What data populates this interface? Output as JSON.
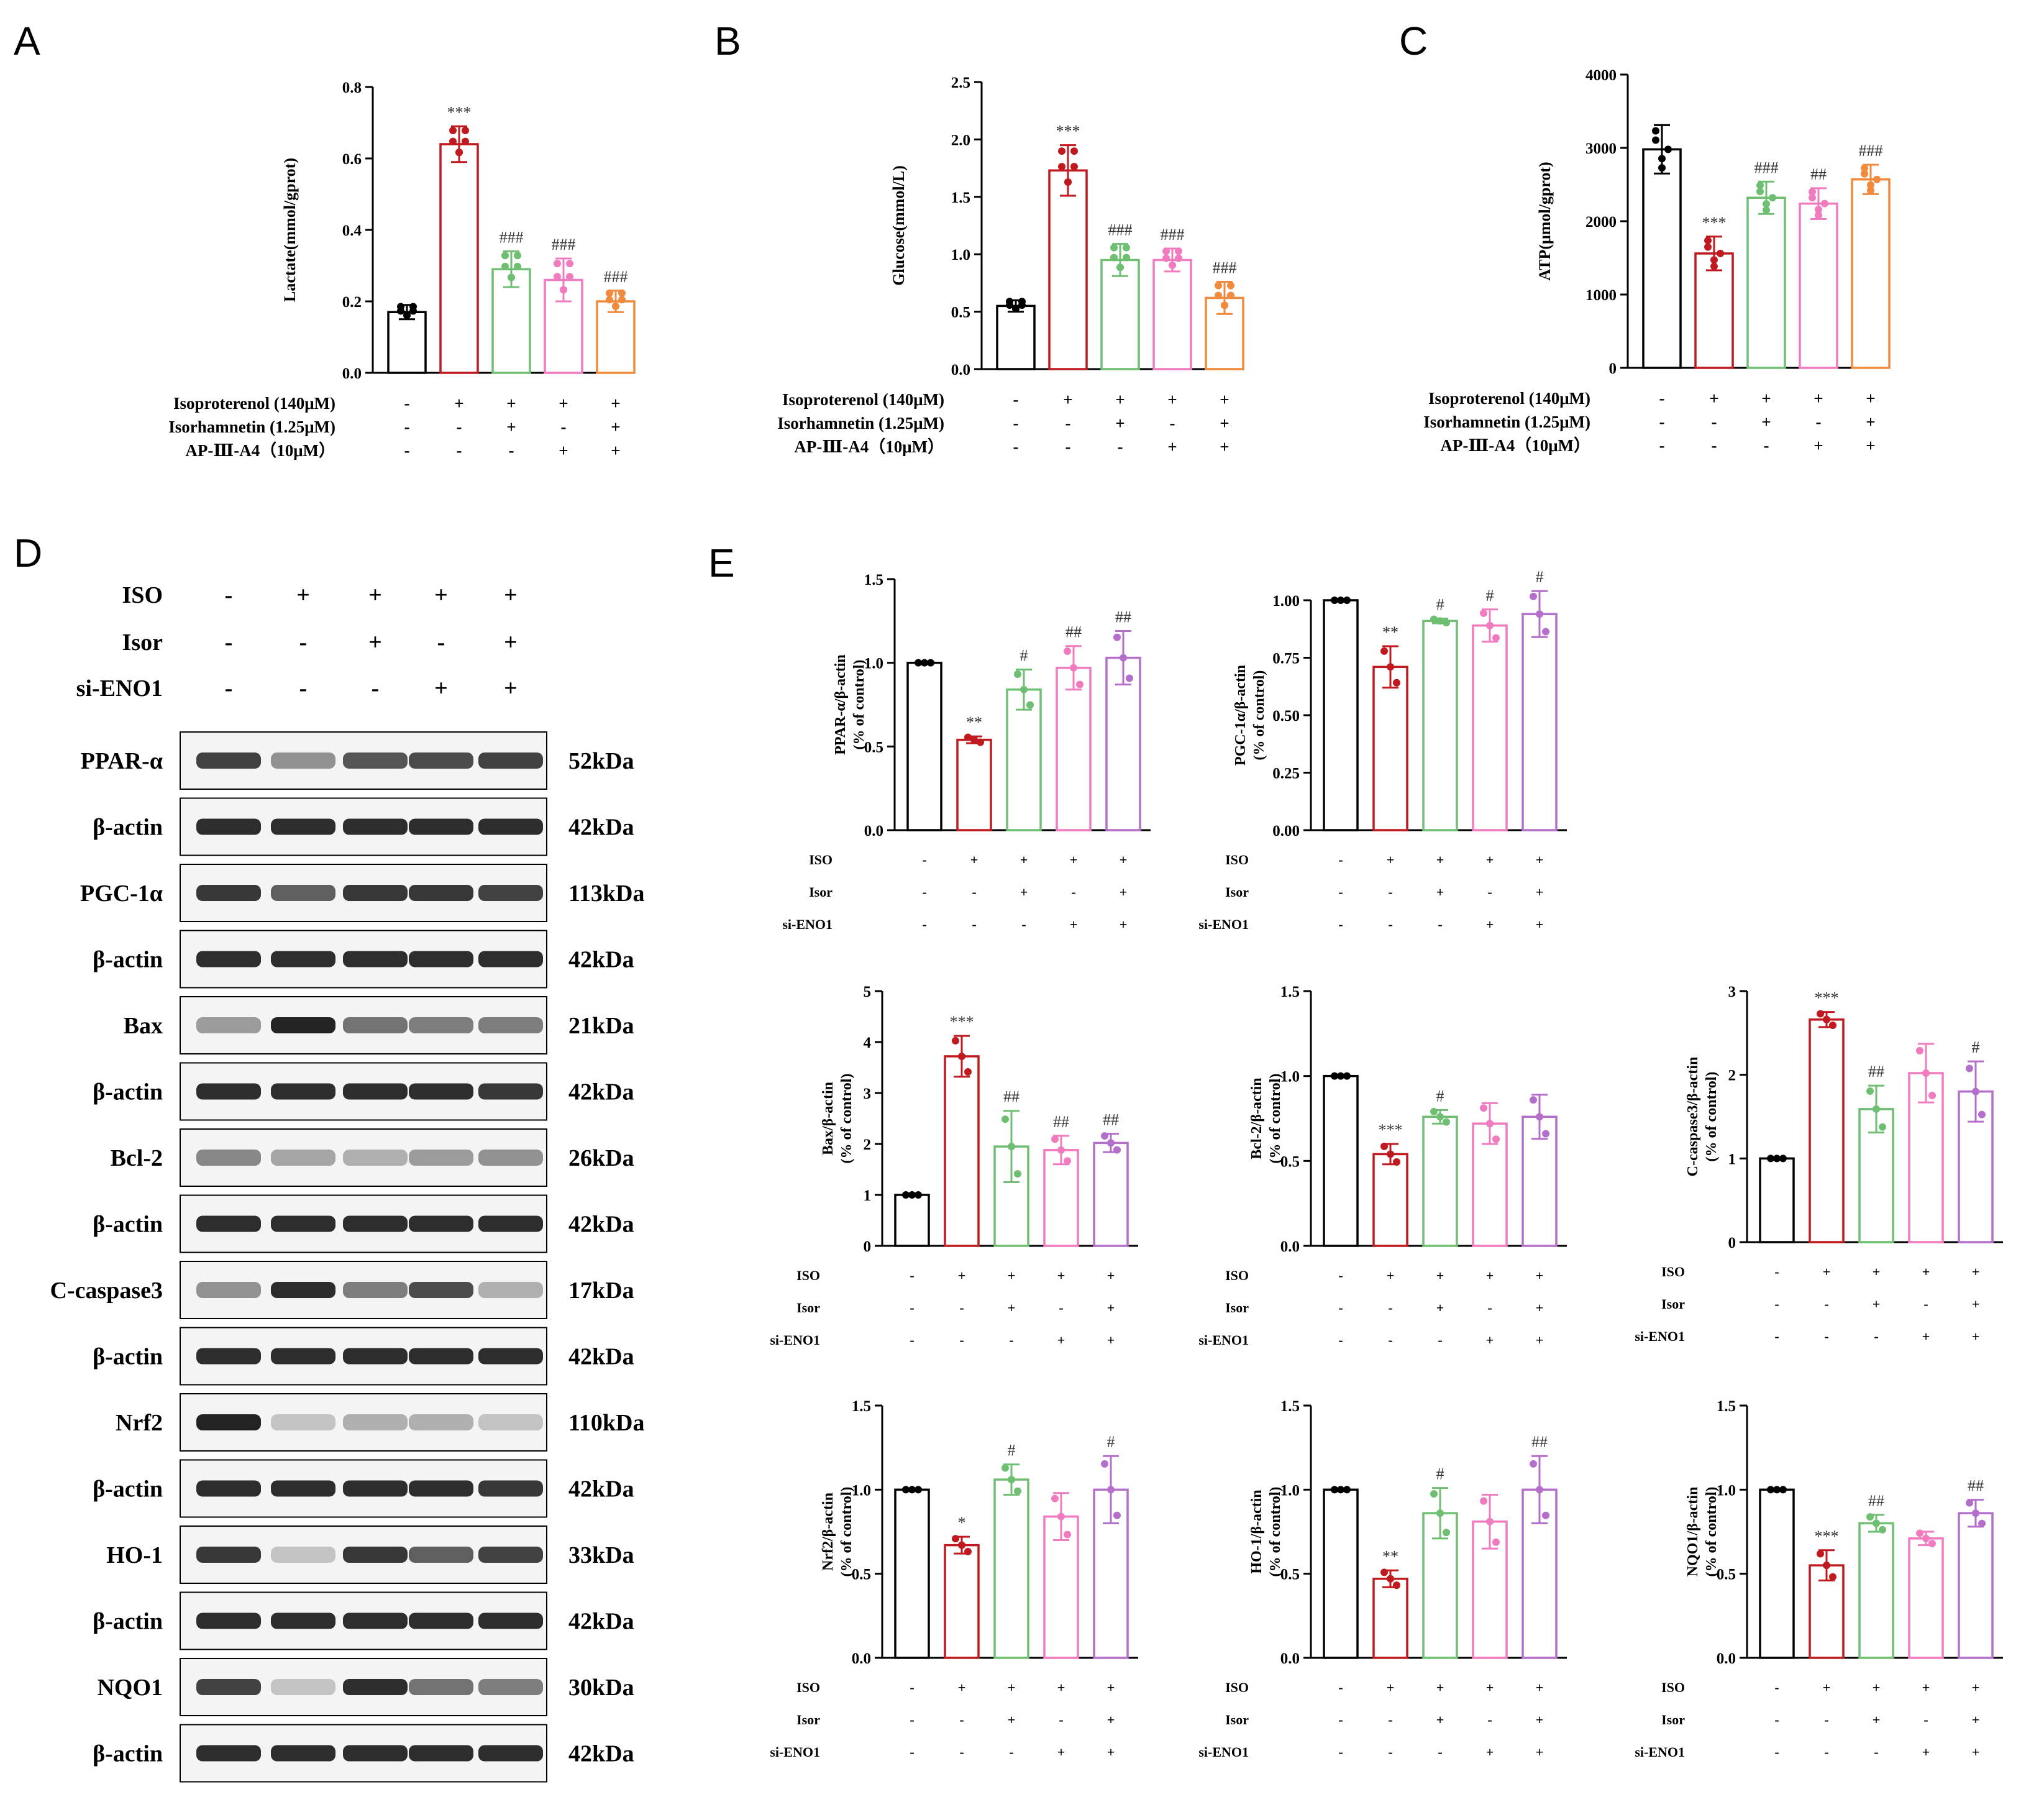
{
  "panel_letters": [
    "A",
    "B",
    "C",
    "D",
    "E"
  ],
  "colors": {
    "control": "#000000",
    "iso": "#c0191f",
    "isor": "#6fbf73",
    "ap_or_si": "#f07bbf",
    "combo_abc": "#f08a3c",
    "combo_e": "#b36fc9"
  },
  "blot": {
    "headers": [
      {
        "label": "ISO",
        "signs": [
          "-",
          "+",
          "+",
          "+",
          "+"
        ]
      },
      {
        "label": "Isor",
        "signs": [
          "-",
          "-",
          "+",
          "-",
          "+"
        ]
      },
      {
        "label": "si-ENO1",
        "signs": [
          "-",
          "-",
          "-",
          "+",
          "+"
        ]
      }
    ],
    "rows": [
      {
        "protein": "PPAR-α",
        "kda": "52kDa",
        "intensity": [
          0.85,
          0.45,
          0.75,
          0.8,
          0.85
        ]
      },
      {
        "protein": "β-actin",
        "kda": "42kDa",
        "intensity": [
          0.95,
          0.95,
          0.95,
          0.95,
          0.95
        ]
      },
      {
        "protein": "PGC-1α",
        "kda": "113kDa",
        "intensity": [
          0.9,
          0.7,
          0.9,
          0.9,
          0.85
        ]
      },
      {
        "protein": "β-actin",
        "kda": "42kDa",
        "intensity": [
          0.95,
          0.95,
          0.95,
          0.95,
          0.95
        ]
      },
      {
        "protein": "Bax",
        "kda": "21kDa",
        "intensity": [
          0.4,
          1.0,
          0.6,
          0.55,
          0.55
        ]
      },
      {
        "protein": "β-actin",
        "kda": "42kDa",
        "intensity": [
          0.95,
          0.95,
          0.95,
          0.95,
          0.9
        ]
      },
      {
        "protein": "Bcl-2",
        "kda": "26kDa",
        "intensity": [
          0.5,
          0.35,
          0.3,
          0.4,
          0.45
        ]
      },
      {
        "protein": "β-actin",
        "kda": "42kDa",
        "intensity": [
          0.95,
          0.95,
          0.95,
          0.95,
          0.95
        ]
      },
      {
        "protein": "C-caspase3",
        "kda": "17kDa",
        "intensity": [
          0.45,
          0.95,
          0.55,
          0.8,
          0.3
        ]
      },
      {
        "protein": "β-actin",
        "kda": "42kDa",
        "intensity": [
          0.95,
          0.95,
          0.95,
          0.95,
          0.95
        ]
      },
      {
        "protein": "Nrf2",
        "kda": "110kDa",
        "intensity": [
          1.0,
          0.2,
          0.3,
          0.3,
          0.2
        ]
      },
      {
        "protein": "β-actin",
        "kda": "42kDa",
        "intensity": [
          0.95,
          0.95,
          0.95,
          0.95,
          0.9
        ]
      },
      {
        "protein": "HO-1",
        "kda": "33kDa",
        "intensity": [
          0.9,
          0.2,
          0.9,
          0.7,
          0.85
        ]
      },
      {
        "protein": "β-actin",
        "kda": "42kDa",
        "intensity": [
          0.95,
          0.95,
          0.95,
          0.95,
          0.95
        ]
      },
      {
        "protein": "NQO1",
        "kda": "30kDa",
        "intensity": [
          0.85,
          0.2,
          0.95,
          0.6,
          0.55
        ]
      },
      {
        "protein": "β-actin",
        "kda": "42kDa",
        "intensity": [
          0.95,
          0.95,
          0.95,
          0.95,
          0.95
        ]
      }
    ]
  },
  "chart_data": [
    {
      "type": "bar",
      "panel": "A",
      "ylabel": "Lactate(mmol/gprot)",
      "ylim": [
        0,
        0.8
      ],
      "yticks": [
        "0.0",
        "0.2",
        "0.4",
        "0.6",
        "0.8"
      ],
      "values": [
        0.17,
        0.64,
        0.29,
        0.26,
        0.2
      ],
      "errors": [
        0.02,
        0.05,
        0.05,
        0.06,
        0.03
      ],
      "significance": [
        "",
        "***",
        "###",
        "###",
        "###"
      ],
      "conditions": [
        {
          "label": "Isoproterenol (140μM)",
          "signs": [
            "-",
            "+",
            "+",
            "+",
            "+"
          ]
        },
        {
          "label": "Isorhamnetin (1.25μM)",
          "signs": [
            "-",
            "-",
            "+",
            "-",
            "+"
          ]
        },
        {
          "label": "AP-Ⅲ-A4（10μM）",
          "signs": [
            "-",
            "-",
            "-",
            "+",
            "+"
          ]
        }
      ]
    },
    {
      "type": "bar",
      "panel": "B",
      "ylabel": "Glucose(mmol/L)",
      "ylim": [
        0,
        2.5
      ],
      "yticks": [
        "0.0",
        "0.5",
        "1.0",
        "1.5",
        "2.0",
        "2.5"
      ],
      "values": [
        0.55,
        1.73,
        0.95,
        0.95,
        0.62
      ],
      "errors": [
        0.05,
        0.22,
        0.14,
        0.1,
        0.14
      ],
      "significance": [
        "",
        "***",
        "###",
        "###",
        "###"
      ],
      "conditions": [
        {
          "label": "Isoproterenol (140μM)",
          "signs": [
            "-",
            "+",
            "+",
            "+",
            "+"
          ]
        },
        {
          "label": "Isorhamnetin (1.25μM)",
          "signs": [
            "-",
            "-",
            "+",
            "-",
            "+"
          ]
        },
        {
          "label": "AP-Ⅲ-A4（10μM）",
          "signs": [
            "-",
            "-",
            "-",
            "+",
            "+"
          ]
        }
      ]
    },
    {
      "type": "bar",
      "panel": "C",
      "ylabel": "ATP(μmol/gprot)",
      "ylim": [
        0,
        4000
      ],
      "yticks": [
        "0",
        "1000",
        "2000",
        "3000",
        "4000"
      ],
      "values": [
        2980,
        1560,
        2320,
        2240,
        2570
      ],
      "errors": [
        330,
        230,
        220,
        210,
        200
      ],
      "significance": [
        "",
        "***",
        "###",
        "##",
        "###"
      ],
      "conditions": [
        {
          "label": "Isoproterenol (140μM)",
          "signs": [
            "-",
            "+",
            "+",
            "+",
            "+"
          ]
        },
        {
          "label": "Isorhamnetin (1.25μM)",
          "signs": [
            "-",
            "-",
            "+",
            "-",
            "+"
          ]
        },
        {
          "label": "AP-Ⅲ-A4（10μM）",
          "signs": [
            "-",
            "-",
            "-",
            "+",
            "+"
          ]
        }
      ]
    },
    {
      "type": "bar",
      "panel": "E",
      "ylabel_top": "PPAR-α/β-actin",
      "ylabel_bottom": "(% of control)",
      "ylim": [
        0,
        1.5
      ],
      "yticks": [
        "0.0",
        "0.5",
        "1.0",
        "1.5"
      ],
      "values": [
        1.0,
        0.54,
        0.84,
        0.97,
        1.03
      ],
      "errors": [
        0,
        0.02,
        0.12,
        0.13,
        0.16
      ],
      "significance": [
        "",
        "**",
        "#",
        "##",
        "##"
      ],
      "conditions": [
        {
          "label": "ISO",
          "signs": [
            "-",
            "+",
            "+",
            "+",
            "+"
          ]
        },
        {
          "label": "Isor",
          "signs": [
            "-",
            "-",
            "+",
            "-",
            "+"
          ]
        },
        {
          "label": "si-ENO1",
          "signs": [
            "-",
            "-",
            "-",
            "+",
            "+"
          ]
        }
      ]
    },
    {
      "type": "bar",
      "panel": "E",
      "ylabel_top": "PGC-1α/β-actin",
      "ylabel_bottom": "(% of control)",
      "ylim": [
        0,
        1.0
      ],
      "yticks": [
        "0.00",
        "0.25",
        "0.50",
        "0.75",
        "1.00"
      ],
      "values": [
        1.0,
        0.71,
        0.91,
        0.89,
        0.94
      ],
      "errors": [
        0,
        0.09,
        0.01,
        0.07,
        0.1
      ],
      "significance": [
        "",
        "**",
        "#",
        "#",
        "#"
      ],
      "conditions": [
        {
          "label": "ISO",
          "signs": [
            "-",
            "+",
            "+",
            "+",
            "+"
          ]
        },
        {
          "label": "Isor",
          "signs": [
            "-",
            "-",
            "+",
            "-",
            "+"
          ]
        },
        {
          "label": "si-ENO1",
          "signs": [
            "-",
            "-",
            "-",
            "+",
            "+"
          ]
        }
      ]
    },
    {
      "type": "bar",
      "panel": "E",
      "ylabel_top": "Bax/β-actin",
      "ylabel_bottom": "(% of control)",
      "ylim": [
        0,
        5
      ],
      "yticks": [
        "0",
        "1",
        "2",
        "3",
        "4",
        "5"
      ],
      "values": [
        1.0,
        3.72,
        1.95,
        1.88,
        2.02
      ],
      "errors": [
        0,
        0.4,
        0.7,
        0.28,
        0.18
      ],
      "significance": [
        "",
        "***",
        "##",
        "##",
        "##"
      ],
      "conditions": [
        {
          "label": "ISO",
          "signs": [
            "-",
            "+",
            "+",
            "+",
            "+"
          ]
        },
        {
          "label": "Isor",
          "signs": [
            "-",
            "-",
            "+",
            "-",
            "+"
          ]
        },
        {
          "label": "si-ENO1",
          "signs": [
            "-",
            "-",
            "-",
            "+",
            "+"
          ]
        }
      ]
    },
    {
      "type": "bar",
      "panel": "E",
      "ylabel_top": "Bcl-2/β-actin",
      "ylabel_bottom": "(% of control)",
      "ylim": [
        0,
        1.5
      ],
      "yticks": [
        "0.0",
        "0.5",
        "1.0",
        "1.5"
      ],
      "values": [
        1.0,
        0.54,
        0.76,
        0.72,
        0.76
      ],
      "errors": [
        0,
        0.06,
        0.04,
        0.12,
        0.13
      ],
      "significance": [
        "",
        "***",
        "#",
        "",
        ""
      ],
      "conditions": [
        {
          "label": "ISO",
          "signs": [
            "-",
            "+",
            "+",
            "+",
            "+"
          ]
        },
        {
          "label": "Isor",
          "signs": [
            "-",
            "-",
            "+",
            "-",
            "+"
          ]
        },
        {
          "label": "si-ENO1",
          "signs": [
            "-",
            "-",
            "-",
            "+",
            "+"
          ]
        }
      ]
    },
    {
      "type": "bar",
      "panel": "E",
      "ylabel_top": "C-caspase3/β-actin",
      "ylabel_bottom": "(% of control)",
      "ylim": [
        0,
        3
      ],
      "yticks": [
        "0",
        "1",
        "2",
        "3"
      ],
      "values": [
        1.0,
        2.66,
        1.59,
        2.02,
        1.8
      ],
      "errors": [
        0,
        0.09,
        0.28,
        0.35,
        0.36
      ],
      "significance": [
        "",
        "***",
        "##",
        "",
        "#"
      ],
      "conditions": [
        {
          "label": "ISO",
          "signs": [
            "-",
            "+",
            "+",
            "+",
            "+"
          ]
        },
        {
          "label": "Isor",
          "signs": [
            "-",
            "-",
            "+",
            "-",
            "+"
          ]
        },
        {
          "label": "si-ENO1",
          "signs": [
            "-",
            "-",
            "-",
            "+",
            "+"
          ]
        }
      ]
    },
    {
      "type": "bar",
      "panel": "E",
      "ylabel_top": "Nrf2/β-actin",
      "ylabel_bottom": "(% of control)",
      "ylim": [
        0,
        1.5
      ],
      "yticks": [
        "0.0",
        "0.5",
        "1.0",
        "1.5"
      ],
      "values": [
        1.0,
        0.67,
        1.06,
        0.84,
        1.0
      ],
      "errors": [
        0,
        0.05,
        0.09,
        0.14,
        0.2
      ],
      "significance": [
        "",
        "*",
        "#",
        "",
        "#"
      ],
      "conditions": [
        {
          "label": "ISO",
          "signs": [
            "-",
            "+",
            "+",
            "+",
            "+"
          ]
        },
        {
          "label": "Isor",
          "signs": [
            "-",
            "-",
            "+",
            "-",
            "+"
          ]
        },
        {
          "label": "si-ENO1",
          "signs": [
            "-",
            "-",
            "-",
            "+",
            "+"
          ]
        }
      ]
    },
    {
      "type": "bar",
      "panel": "E",
      "ylabel_top": "HO-1/β-actin",
      "ylabel_bottom": "(% of control)",
      "ylim": [
        0,
        1.5
      ],
      "yticks": [
        "0.0",
        "0.5",
        "1.0",
        "1.5"
      ],
      "values": [
        1.0,
        0.47,
        0.86,
        0.81,
        1.0
      ],
      "errors": [
        0,
        0.05,
        0.15,
        0.16,
        0.2
      ],
      "significance": [
        "",
        "**",
        "#",
        "",
        "##"
      ],
      "conditions": [
        {
          "label": "ISO",
          "signs": [
            "-",
            "+",
            "+",
            "+",
            "+"
          ]
        },
        {
          "label": "Isor",
          "signs": [
            "-",
            "-",
            "+",
            "-",
            "+"
          ]
        },
        {
          "label": "si-ENO1",
          "signs": [
            "-",
            "-",
            "-",
            "+",
            "+"
          ]
        }
      ]
    },
    {
      "type": "bar",
      "panel": "E",
      "ylabel_top": "NQO1/β-actin",
      "ylabel_bottom": "(% of control)",
      "ylim": [
        0,
        1.5
      ],
      "yticks": [
        "0.0",
        "0.5",
        "1.0",
        "1.5"
      ],
      "values": [
        1.0,
        0.55,
        0.8,
        0.71,
        0.86
      ],
      "errors": [
        0,
        0.09,
        0.05,
        0.04,
        0.08
      ],
      "significance": [
        "",
        "***",
        "##",
        "",
        "##"
      ],
      "conditions": [
        {
          "label": "ISO",
          "signs": [
            "-",
            "+",
            "+",
            "+",
            "+"
          ]
        },
        {
          "label": "Isor",
          "signs": [
            "-",
            "-",
            "+",
            "-",
            "+"
          ]
        },
        {
          "label": "si-ENO1",
          "signs": [
            "-",
            "-",
            "-",
            "+",
            "+"
          ]
        }
      ]
    }
  ]
}
